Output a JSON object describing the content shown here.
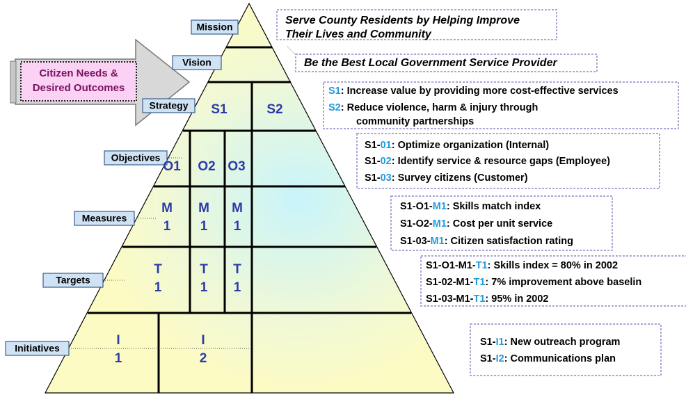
{
  "arrow_label": [
    "Citizen Needs &",
    "Desired Outcomes"
  ],
  "levels": [
    "Mission",
    "Vision",
    "Strategy",
    "Objectives",
    "Measures",
    "Targets",
    "Initiatives"
  ],
  "cells": [
    [
      "S1"
    ],
    [
      "S2"
    ],
    [
      "O1"
    ],
    [
      "O2"
    ],
    [
      "O3"
    ],
    [
      "M",
      "1"
    ],
    [
      "M",
      "1"
    ],
    [
      "M",
      "1"
    ],
    [
      "T",
      "1"
    ],
    [
      "T",
      "1"
    ],
    [
      "T",
      "1"
    ],
    [
      "I",
      "1"
    ],
    [
      "I",
      "2"
    ]
  ],
  "descriptions": [
    [
      {
        "text": "Serve County Residents by Helping Improve"
      },
      {
        "text": "Their Lives and Community"
      }
    ],
    [
      {
        "text": "Be the Best Local Government Service Provider"
      }
    ],
    [
      {
        "code": "S1",
        "text": ": Increase value by providing more cost-effective services"
      },
      {
        "code": "S2",
        "text": ": Reduce violence, harm & injury through"
      },
      {
        "text": "community partnerships"
      }
    ],
    [
      {
        "prefix": "S1-",
        "code": "01",
        "text": ": Optimize organization (Internal)"
      },
      {
        "prefix": "S1-",
        "code": "02",
        "text": ": Identify service & resource gaps (Employee)"
      },
      {
        "prefix": "S1-",
        "code": "03",
        "text": ": Survey citizens (Customer)"
      }
    ],
    [
      {
        "prefix": "S1-O1-",
        "code": "M1",
        "text": ": Skills match index"
      },
      {
        "prefix": "S1-O2-",
        "code": "M1",
        "text": ": Cost per unit service"
      },
      {
        "prefix": "S1-03-",
        "code": "M1",
        "text": ": Citizen satisfaction rating"
      }
    ],
    [
      {
        "prefix": "S1-O1-M1-",
        "code": "T1",
        "text": ": Skills index = 80% in 2002"
      },
      {
        "prefix": "S1-02-M1-",
        "code": "T1",
        "text": ": 7% improvement above baselin"
      },
      {
        "prefix": "S1-03-M1-",
        "code": "T1",
        "text": ": 95% in 2002"
      }
    ],
    [
      {
        "prefix": "S1-",
        "code": "I1",
        "text": ": New outreach program"
      },
      {
        "prefix": "S1-",
        "code": "I2",
        "text": ": Communications plan"
      }
    ]
  ]
}
